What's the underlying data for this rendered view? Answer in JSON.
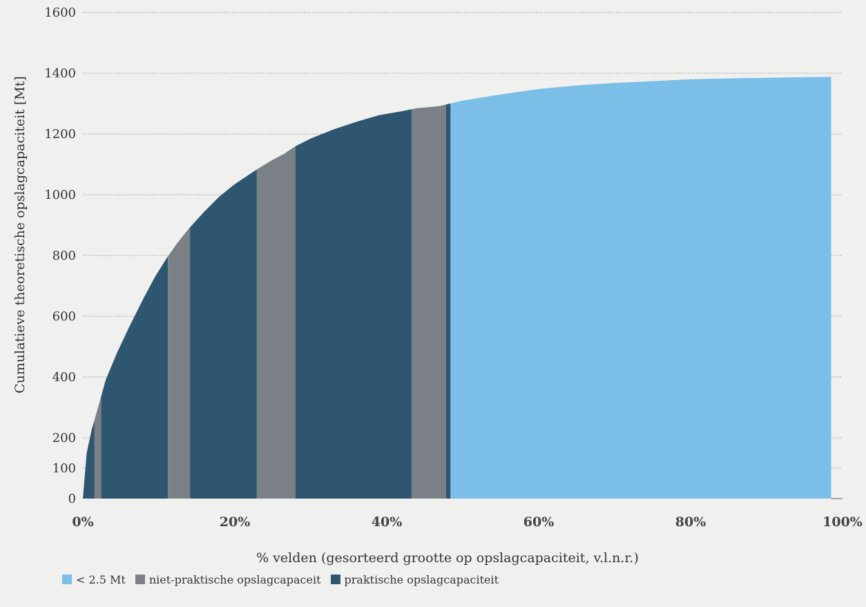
{
  "chart_data": {
    "type": "area",
    "xlabel": "% velden (gesorteerd grootte op opslagcapaciteit, v.l.n.r.)",
    "ylabel": "Cumulatieve theoretische opslagcapaciteit [Mt]",
    "xlim": [
      0,
      100
    ],
    "ylim": [
      0,
      1600
    ],
    "xticks": [
      0,
      20,
      40,
      60,
      80,
      100
    ],
    "xtick_labels": [
      "0%",
      "20%",
      "40%",
      "60%",
      "80%",
      "100%"
    ],
    "yticks": [
      0,
      100,
      200,
      400,
      600,
      800,
      1000,
      1200,
      1400,
      1600
    ],
    "ytick_labels": [
      "0",
      "100",
      "200",
      "400",
      "600",
      "800",
      "1000",
      "1200",
      "1400",
      "1600"
    ],
    "grid": "horizontal dotted",
    "legend_position": "bottom-left",
    "colors": {
      "small": "#7bbfe8",
      "impractical": "#7a8085",
      "practical": "#2e5670"
    },
    "cumulative_curve": {
      "x": [
        0,
        0.5,
        1.2,
        2,
        3,
        4.5,
        6,
        8,
        9.5,
        11,
        12.4,
        14,
        16,
        18,
        20,
        21.5,
        23,
        25,
        26.5,
        28,
        30,
        33,
        36,
        39,
        42,
        44,
        46.3,
        47,
        50,
        55,
        60,
        65,
        70,
        75,
        80,
        85,
        90,
        95,
        98.5
      ],
      "y": [
        0,
        150,
        230,
        300,
        390,
        480,
        560,
        660,
        730,
        790,
        840,
        890,
        945,
        995,
        1035,
        1060,
        1085,
        1115,
        1135,
        1160,
        1185,
        1215,
        1240,
        1262,
        1275,
        1285,
        1290,
        1292,
        1310,
        1330,
        1348,
        1360,
        1368,
        1374,
        1380,
        1383,
        1385,
        1387,
        1388
      ]
    },
    "segments": [
      {
        "category": "practical",
        "x_start": 0,
        "x_end": 1.5
      },
      {
        "category": "impractical",
        "x_start": 1.5,
        "x_end": 2.4
      },
      {
        "category": "practical",
        "x_start": 2.4,
        "x_end": 11.2
      },
      {
        "category": "impractical",
        "x_start": 11.2,
        "x_end": 14.1
      },
      {
        "category": "practical",
        "x_start": 14.1,
        "x_end": 22.9
      },
      {
        "category": "impractical",
        "x_start": 22.9,
        "x_end": 28.0
      },
      {
        "category": "practical",
        "x_start": 28.0,
        "x_end": 43.3
      },
      {
        "category": "impractical",
        "x_start": 43.3,
        "x_end": 47.8
      },
      {
        "category": "practical",
        "x_start": 47.8,
        "x_end": 48.4
      },
      {
        "category": "small",
        "x_start": 48.4,
        "x_end": 100
      }
    ],
    "legend": [
      {
        "key": "small",
        "label": "< 2.5 Mt"
      },
      {
        "key": "impractical",
        "label": "niet-praktische opslagcapaceit"
      },
      {
        "key": "practical",
        "label": "praktische opslagcapaciteit"
      }
    ]
  }
}
